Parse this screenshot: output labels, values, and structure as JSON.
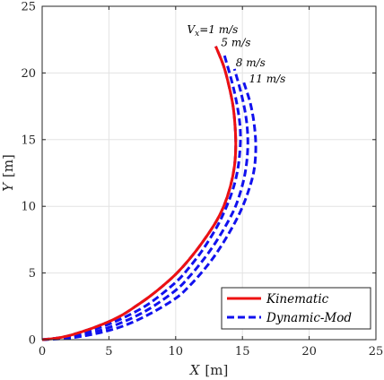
{
  "chart_data": {
    "type": "line",
    "xlabel": {
      "var": "X",
      "unit": "[m]"
    },
    "ylabel": {
      "var": "Y",
      "unit": "[m]"
    },
    "xlim": [
      0,
      25
    ],
    "ylim": [
      0,
      25
    ],
    "xticks": [
      "0",
      "5",
      "10",
      "15",
      "20",
      "25"
    ],
    "yticks": [
      "0",
      "5",
      "10",
      "15",
      "20",
      "25"
    ],
    "grid": true,
    "legend": {
      "position": "bottom-right",
      "entries": [
        {
          "label": "Kinematic",
          "color": "#ee1111",
          "style": "solid"
        },
        {
          "label": "Dynamic-Mod",
          "color": "#1111ee",
          "style": "dashed"
        }
      ]
    },
    "annotations": [
      {
        "text": "V_x=1 m/s",
        "x": 13.0,
        "y": 23.0
      },
      {
        "text": "5 m/s",
        "x": 13.4,
        "y": 22.0
      },
      {
        "text": "8 m/s",
        "x": 14.5,
        "y": 20.5
      },
      {
        "text": "11 m/s",
        "x": 15.5,
        "y": 19.3
      }
    ],
    "series": [
      {
        "name": "Kinematic",
        "color": "#ee1111",
        "style": "solid",
        "x": [
          0.0,
          1.0,
          2.0,
          3.0,
          4.0,
          5.0,
          6.0,
          7.0,
          8.0,
          9.0,
          10.0,
          11.0,
          12.0,
          13.0,
          13.6,
          14.1,
          14.4,
          14.5,
          14.45,
          14.3,
          14.0,
          13.6,
          13.0
        ],
        "y": [
          0.0,
          0.1,
          0.3,
          0.6,
          0.95,
          1.35,
          1.85,
          2.5,
          3.2,
          4.0,
          4.9,
          6.0,
          7.3,
          8.8,
          10.0,
          11.5,
          13.0,
          14.5,
          16.0,
          17.5,
          19.0,
          20.5,
          22.0
        ]
      },
      {
        "name": "V_x = 1 m/s",
        "color": "#1111ee",
        "style": "dashed",
        "x": [
          0.0,
          1.0,
          2.0,
          3.0,
          4.0,
          5.0,
          6.0,
          7.0,
          8.0,
          9.0,
          10.0,
          11.0,
          12.0,
          13.0,
          13.6,
          14.1,
          14.4,
          14.5,
          14.45,
          14.3,
          14.0,
          13.6,
          13.0
        ],
        "y": [
          0.0,
          0.1,
          0.3,
          0.6,
          0.95,
          1.35,
          1.85,
          2.5,
          3.2,
          4.0,
          4.9,
          6.0,
          7.3,
          8.8,
          10.0,
          11.5,
          13.0,
          14.5,
          16.0,
          17.5,
          19.0,
          20.5,
          22.0
        ]
      },
      {
        "name": "V_x = 5 m/s",
        "color": "#1111ee",
        "style": "dashed",
        "x": [
          0.0,
          2.0,
          4.0,
          6.0,
          8.0,
          10.0,
          11.0,
          12.0,
          13.0,
          13.6,
          14.2,
          14.6,
          14.8,
          14.85,
          14.7,
          14.3,
          13.6
        ],
        "y": [
          0.0,
          0.25,
          0.8,
          1.6,
          2.7,
          4.3,
          5.4,
          6.7,
          8.3,
          9.5,
          11.0,
          12.5,
          14.0,
          15.5,
          17.0,
          19.0,
          21.5
        ]
      },
      {
        "name": "V_x = 8 m/s",
        "color": "#1111ee",
        "style": "dashed",
        "x": [
          0.0,
          2.0,
          4.0,
          6.0,
          8.0,
          10.0,
          11.0,
          12.0,
          13.0,
          14.0,
          14.6,
          15.1,
          15.35,
          15.4,
          15.25,
          14.9,
          14.4
        ],
        "y": [
          0.0,
          0.18,
          0.6,
          1.3,
          2.3,
          3.7,
          4.7,
          5.9,
          7.3,
          9.0,
          10.3,
          12.0,
          13.6,
          15.2,
          16.8,
          18.5,
          20.3
        ]
      },
      {
        "name": "V_x = 11 m/s",
        "color": "#1111ee",
        "style": "dashed",
        "x": [
          0.0,
          2.0,
          4.0,
          6.0,
          8.0,
          10.0,
          11.0,
          12.0,
          13.0,
          14.0,
          14.8,
          15.4,
          15.85,
          16.0,
          15.9,
          15.6,
          15.1
        ],
        "y": [
          0.0,
          0.12,
          0.45,
          1.0,
          1.9,
          3.1,
          4.0,
          5.1,
          6.4,
          8.0,
          9.5,
          11.0,
          12.6,
          14.3,
          16.0,
          17.7,
          19.3
        ]
      }
    ]
  }
}
